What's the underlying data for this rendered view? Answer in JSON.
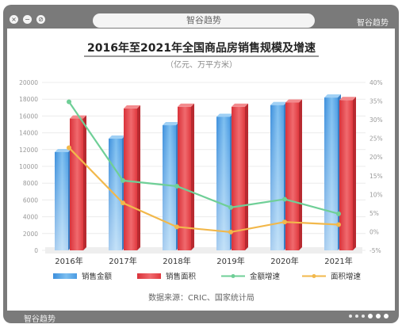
{
  "window": {
    "address_label": "智谷趋势",
    "brand_top": "智谷趋势",
    "brand_bottom": "智谷趋势",
    "close_glyph": "×",
    "minimize_glyph": "−",
    "restore_glyph": "⊘"
  },
  "colors": {
    "frame": "#7a7a7a",
    "bar_amount": "#5aa9e8",
    "bar_area": "#e8454a",
    "line_amount_growth": "#6fcf97",
    "line_area_growth": "#f2b84b"
  },
  "chart_data": {
    "type": "bar",
    "title": "2016年至2021年全国商品房销售规模及增速",
    "subtitle": "（亿元、万平方米）",
    "categories": [
      "2016年",
      "2017年",
      "2018年",
      "2019年",
      "2020年",
      "2021年"
    ],
    "y_left": {
      "min": 0,
      "max": 20000,
      "ticks": [
        "0",
        "2000",
        "4000",
        "6000",
        "8000",
        "10000",
        "12000",
        "14000",
        "16000",
        "18000",
        "20000"
      ]
    },
    "y_right": {
      "min": -5,
      "max": 40,
      "ticks": [
        "-5%",
        "0%",
        "5%",
        "10%",
        "15%",
        "20%",
        "25%",
        "30%",
        "35%",
        "40%"
      ]
    },
    "series": [
      {
        "name": "销售金额",
        "kind": "bar",
        "axis": "left",
        "values": [
          11700,
          13300,
          14900,
          15900,
          17300,
          18200
        ]
      },
      {
        "name": "销售面积",
        "kind": "bar",
        "axis": "left",
        "values": [
          15700,
          16900,
          17100,
          17100,
          17600,
          17900
        ]
      },
      {
        "name": "金额增速",
        "kind": "line",
        "axis": "right",
        "values": [
          34.8,
          13.7,
          12.2,
          6.5,
          8.7,
          4.8
        ]
      },
      {
        "name": "面积增速",
        "kind": "line",
        "axis": "right",
        "values": [
          22.5,
          7.7,
          1.3,
          -0.1,
          2.6,
          1.9
        ]
      }
    ],
    "legend_position": "bottom",
    "grid": true,
    "source": "数据来源：CRIC、国家统计局"
  }
}
